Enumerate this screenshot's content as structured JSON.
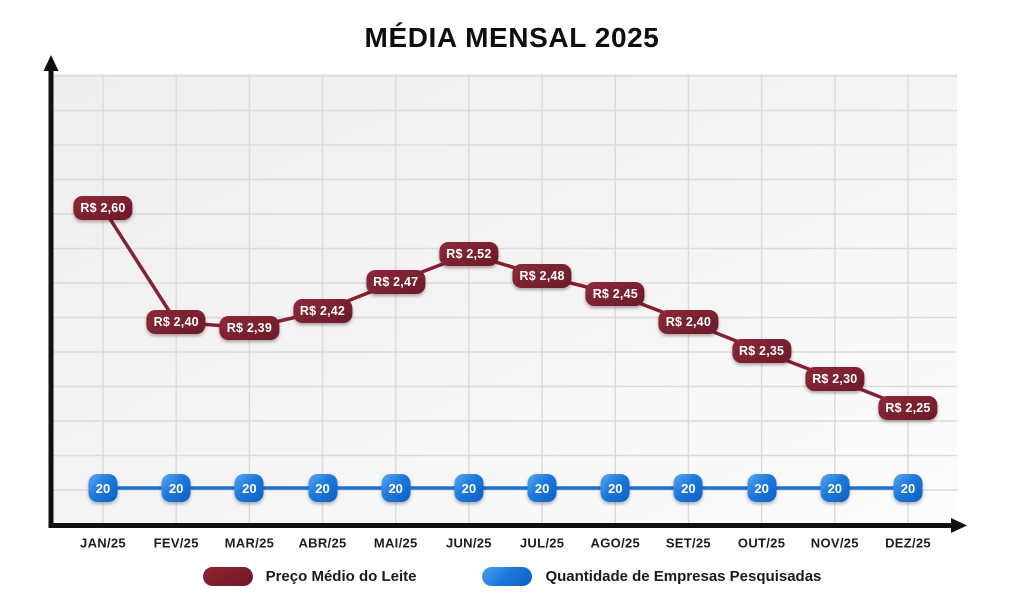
{
  "title": "MÉDIA MENSAL 2025",
  "chart_data": {
    "type": "line",
    "categories": [
      "JAN/25",
      "FEV/25",
      "MAR/25",
      "ABR/25",
      "MAI/25",
      "JUN/25",
      "JUL/25",
      "AGO/25",
      "SET/25",
      "OUT/25",
      "NOV/25",
      "DEZ/25"
    ],
    "series": [
      {
        "name": "Preço Médio do Leite",
        "values": [
          2.6,
          2.4,
          2.39,
          2.42,
          2.47,
          2.52,
          2.48,
          2.45,
          2.4,
          2.35,
          2.3,
          2.25
        ],
        "point_labels": [
          "R$ 2,60",
          "R$ 2,40",
          "R$ 2,39",
          "R$ 2,42",
          "R$ 2,47",
          "R$ 2,52",
          "R$ 2,48",
          "R$ 2,45",
          "R$ 2,40",
          "R$ 2,35",
          "R$ 2,30",
          "R$ 2,25"
        ],
        "color": "#842233"
      },
      {
        "name": "Quantidade de Empresas Pesquisadas",
        "values": [
          20,
          20,
          20,
          20,
          20,
          20,
          20,
          20,
          20,
          20,
          20,
          20
        ],
        "point_labels": [
          "20",
          "20",
          "20",
          "20",
          "20",
          "20",
          "20",
          "20",
          "20",
          "20",
          "20",
          "20"
        ],
        "color": "#1b72d2"
      }
    ],
    "grid": true,
    "legend_position": "bottom",
    "y_axis_labels_visible": false,
    "x_axis_arrow": true,
    "y_axis_arrow": true
  }
}
